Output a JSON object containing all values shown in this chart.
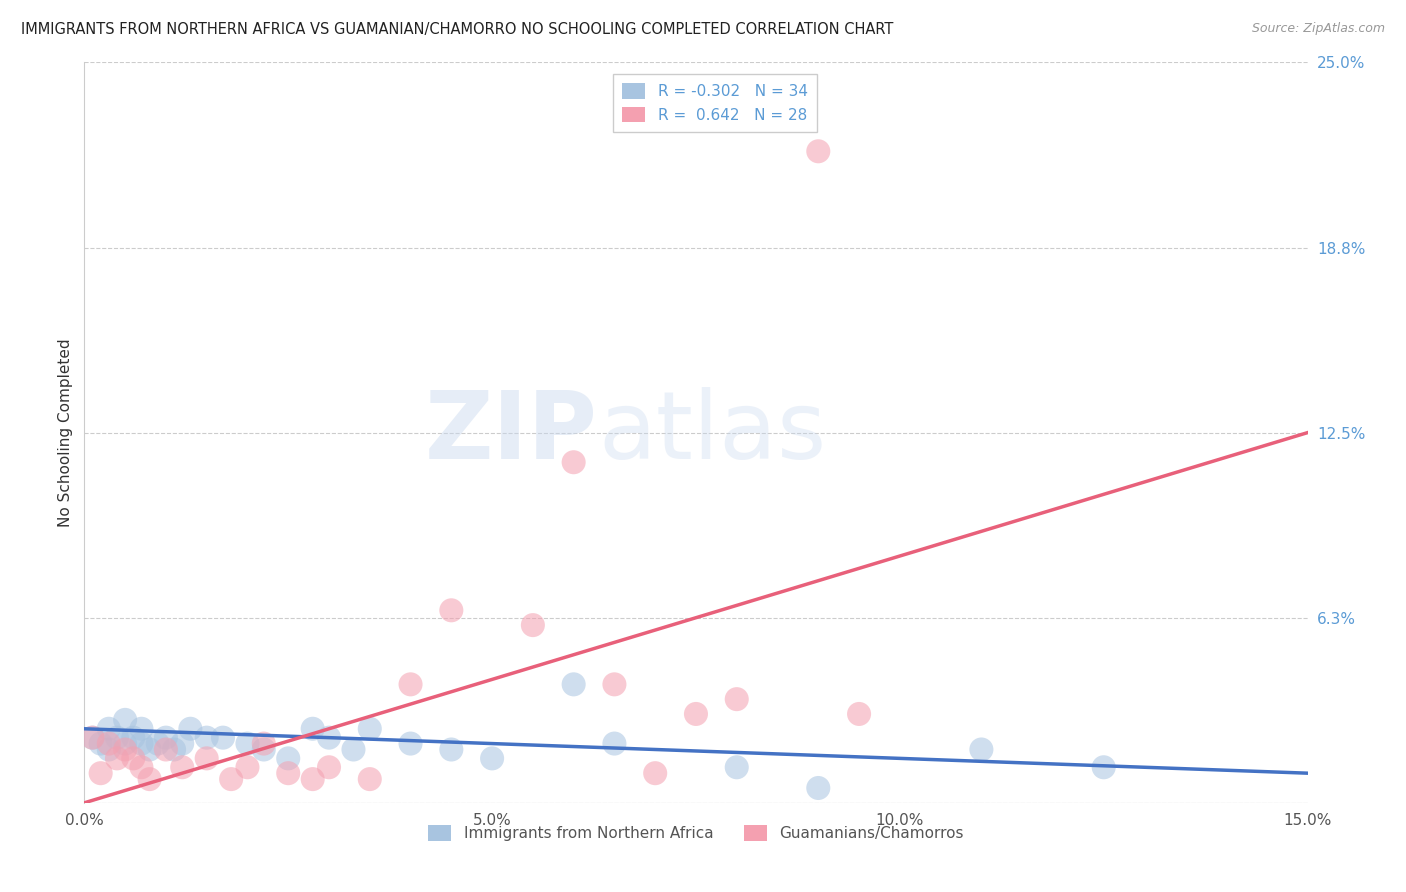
{
  "title": "IMMIGRANTS FROM NORTHERN AFRICA VS GUAMANIAN/CHAMORRO NO SCHOOLING COMPLETED CORRELATION CHART",
  "source": "Source: ZipAtlas.com",
  "ylabel": "No Schooling Completed",
  "xlim": [
    0.0,
    0.15
  ],
  "ylim": [
    0.0,
    0.25
  ],
  "xticks": [
    0.0,
    0.05,
    0.1,
    0.15
  ],
  "xticklabels": [
    "0.0%",
    "5.0%",
    "10.0%",
    "15.0%"
  ],
  "yticks_right": [
    0.0,
    0.0625,
    0.125,
    0.1875,
    0.25
  ],
  "ytickslabels_right": [
    "",
    "6.3%",
    "12.5%",
    "18.8%",
    "25.0%"
  ],
  "right_axis_color": "#5b9bd5",
  "scatter_blue_color": "#a8c4e0",
  "scatter_pink_color": "#f4a0b0",
  "line_blue_color": "#4472c4",
  "line_pink_color": "#e8607a",
  "R_blue": -0.302,
  "N_blue": 34,
  "R_pink": 0.642,
  "N_pink": 28,
  "legend_label_blue": "Immigrants from Northern Africa",
  "legend_label_pink": "Guamanians/Chamorros",
  "watermark_zip": "ZIP",
  "watermark_atlas": "atlas",
  "blue_scatter_x": [
    0.001,
    0.002,
    0.003,
    0.003,
    0.004,
    0.005,
    0.005,
    0.006,
    0.007,
    0.007,
    0.008,
    0.009,
    0.01,
    0.011,
    0.012,
    0.013,
    0.015,
    0.017,
    0.02,
    0.022,
    0.025,
    0.028,
    0.03,
    0.033,
    0.035,
    0.04,
    0.045,
    0.05,
    0.06,
    0.065,
    0.08,
    0.09,
    0.11,
    0.125
  ],
  "blue_scatter_y": [
    0.022,
    0.02,
    0.018,
    0.025,
    0.022,
    0.02,
    0.028,
    0.022,
    0.02,
    0.025,
    0.018,
    0.02,
    0.022,
    0.018,
    0.02,
    0.025,
    0.022,
    0.022,
    0.02,
    0.018,
    0.015,
    0.025,
    0.022,
    0.018,
    0.025,
    0.02,
    0.018,
    0.015,
    0.04,
    0.02,
    0.012,
    0.005,
    0.018,
    0.012
  ],
  "pink_scatter_x": [
    0.001,
    0.002,
    0.003,
    0.004,
    0.005,
    0.006,
    0.007,
    0.008,
    0.01,
    0.012,
    0.015,
    0.018,
    0.02,
    0.022,
    0.025,
    0.028,
    0.03,
    0.035,
    0.04,
    0.045,
    0.055,
    0.06,
    0.065,
    0.07,
    0.075,
    0.08,
    0.09,
    0.095
  ],
  "pink_scatter_y": [
    0.022,
    0.01,
    0.02,
    0.015,
    0.018,
    0.015,
    0.012,
    0.008,
    0.018,
    0.012,
    0.015,
    0.008,
    0.012,
    0.02,
    0.01,
    0.008,
    0.012,
    0.008,
    0.04,
    0.065,
    0.06,
    0.115,
    0.04,
    0.01,
    0.03,
    0.035,
    0.22,
    0.03
  ],
  "blue_line_x": [
    0.0,
    0.15
  ],
  "blue_line_y": [
    0.025,
    0.01
  ],
  "pink_line_x": [
    0.0,
    0.15
  ],
  "pink_line_y": [
    0.0,
    0.125
  ],
  "grid_color": "#cccccc",
  "grid_style": "--"
}
